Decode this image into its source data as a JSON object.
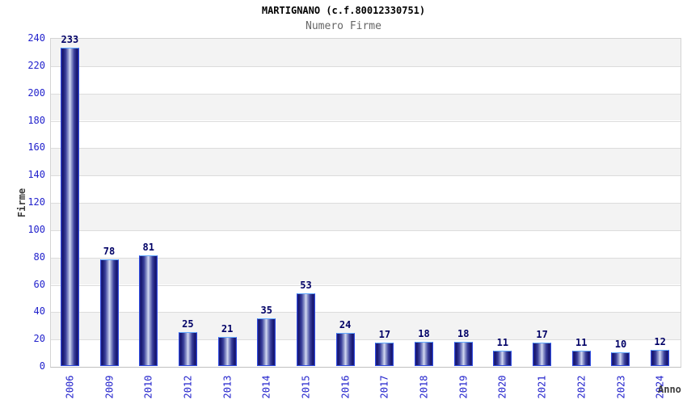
{
  "header": {
    "title": "MARTIGNANO (c.f.80012330751)",
    "subtitle": "Numero Firme"
  },
  "chart_data": {
    "type": "bar",
    "title": "MARTIGNANO (c.f.80012330751)",
    "subtitle": "Numero Firme",
    "xlabel": "Anno",
    "ylabel": "Firme",
    "categories": [
      "2006",
      "2009",
      "2010",
      "2012",
      "2013",
      "2014",
      "2015",
      "2016",
      "2017",
      "2018",
      "2019",
      "2020",
      "2021",
      "2022",
      "2023",
      "2024"
    ],
    "values": [
      233,
      78,
      81,
      25,
      21,
      35,
      53,
      24,
      17,
      18,
      18,
      11,
      17,
      11,
      10,
      12
    ],
    "ylim": [
      0,
      240
    ],
    "yticks": [
      0,
      20,
      40,
      60,
      80,
      100,
      120,
      140,
      160,
      180,
      200,
      220,
      240
    ],
    "grid": "horizontal gridlines every 20 with alternating background bands",
    "legend": "none",
    "bar_value_labels_shown": true
  },
  "colors": {
    "axis_tick_text": "#2222cc",
    "bar_value_text": "#000066",
    "title_text": "#000000",
    "subtitle_text": "#666666",
    "axis_title_text": "#3c3c3c",
    "bar_gradient_dark": "#16166e",
    "bar_gradient_light": "#d6dbf2",
    "bar_outline": "#2e4bdf",
    "bar_outline_top": "#63aaff",
    "band_gray": "#f3f3f3",
    "band_white": "#ffffff",
    "gridline": "#dcdcdc",
    "plot_border": "#d4d4d4"
  }
}
